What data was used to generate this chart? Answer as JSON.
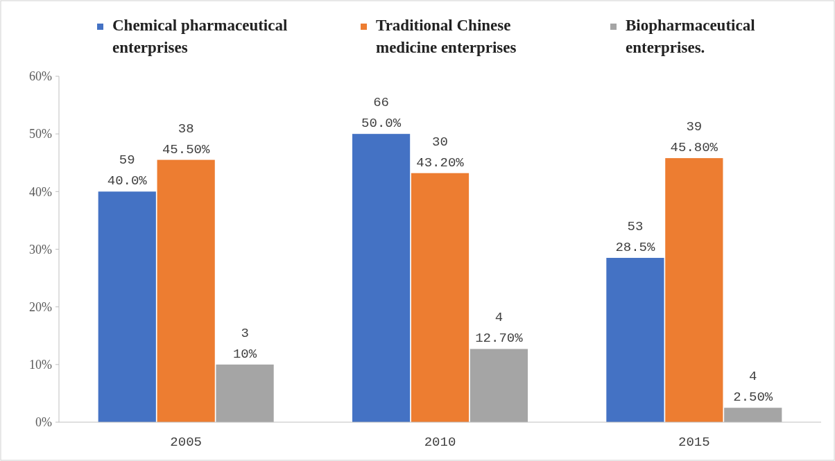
{
  "chart_data": {
    "type": "bar",
    "categories": [
      "2005",
      "2010",
      "2015"
    ],
    "series": [
      {
        "name": "Chemical pharmaceutical enterprises",
        "color": "#4472c4",
        "values": [
          40,
          50,
          28.5
        ],
        "value_labels": [
          "59\n40.0%",
          "66\n50.0%",
          "53\n28.5%"
        ]
      },
      {
        "name": "Traditional Chinese medicine enterprises",
        "color": "#ed7d31",
        "values": [
          45.5,
          43.2,
          45.8
        ],
        "value_labels": [
          "38\n45.50%",
          "30\n43.20%",
          "39\n45.80%"
        ]
      },
      {
        "name": "Biopharmaceutical enterprises.",
        "color": "#a5a5a5",
        "values": [
          10,
          12.7,
          2.5
        ],
        "value_labels": [
          "3\n10%",
          "4\n12.70%",
          "4\n2.50%"
        ]
      }
    ],
    "ylim": [
      0,
      60
    ],
    "yticks": [
      {
        "value": 0,
        "label": "0%"
      },
      {
        "value": 10,
        "label": "10%"
      },
      {
        "value": 20,
        "label": "20%"
      },
      {
        "value": 30,
        "label": "30%"
      },
      {
        "value": 40,
        "label": "40%"
      },
      {
        "value": 50,
        "label": "50%"
      },
      {
        "value": 60,
        "label": "60%"
      }
    ],
    "grid": false,
    "legend": "top"
  }
}
